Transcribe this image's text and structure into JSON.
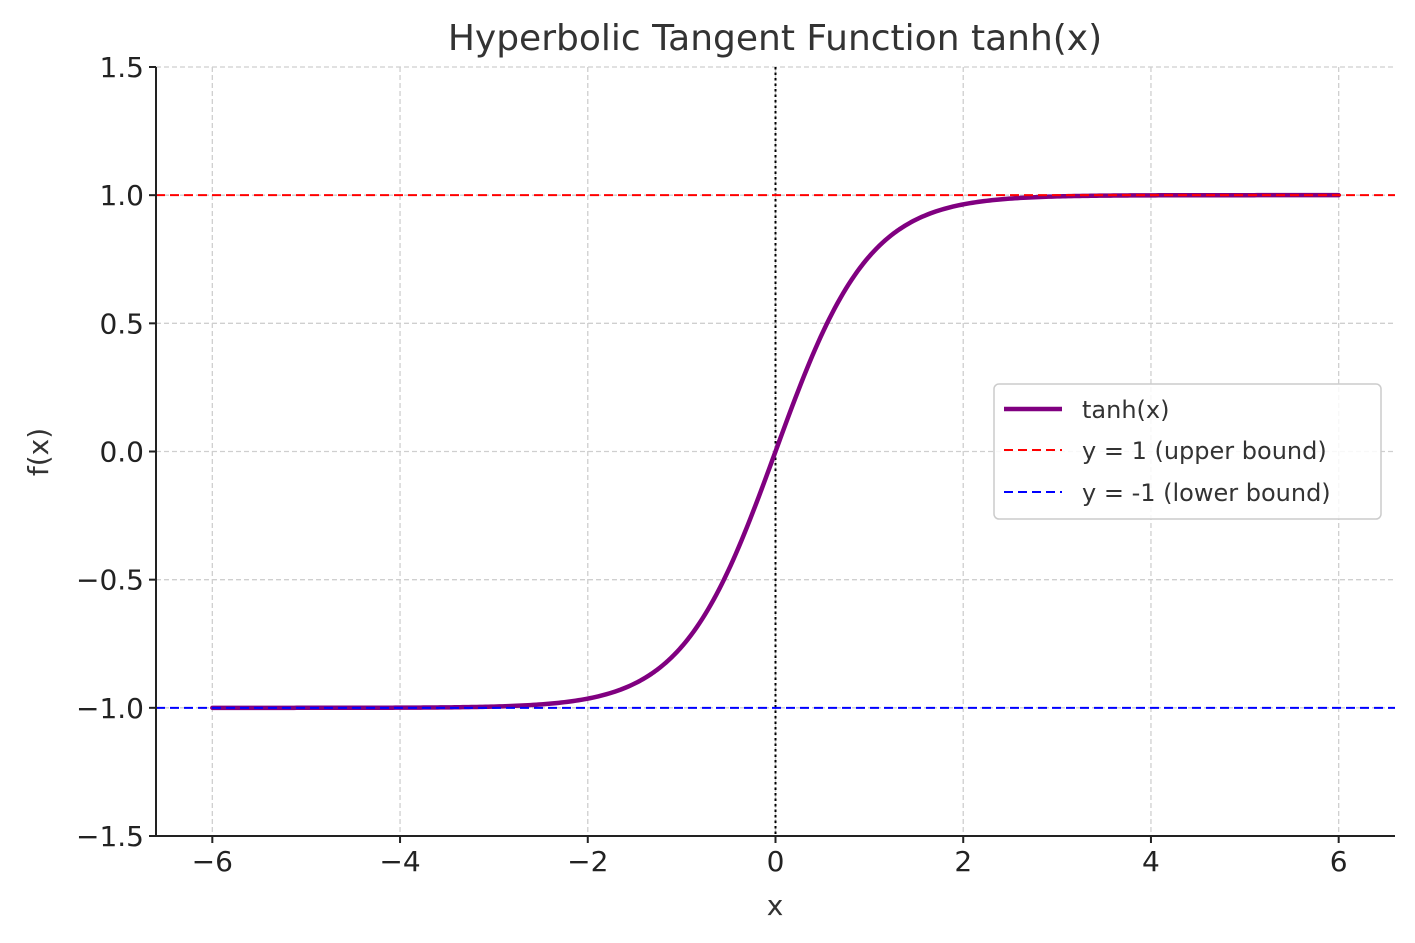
{
  "chart_data": {
    "type": "line",
    "title": "Hyperbolic Tangent Function tanh(x)",
    "xlabel": "x",
    "ylabel": "f(x)",
    "xlim": [
      -6.6,
      6.6
    ],
    "ylim": [
      -1.5,
      1.5
    ],
    "x_ticks": [
      -6,
      -4,
      -2,
      0,
      2,
      4,
      6
    ],
    "x_tick_labels": [
      "−6",
      "−4",
      "−2",
      "0",
      "2",
      "4",
      "6"
    ],
    "y_ticks": [
      -1.5,
      -1.0,
      -0.5,
      0.0,
      0.5,
      1.0,
      1.5
    ],
    "y_tick_labels": [
      "−1.5",
      "−1.0",
      "−0.5",
      "0.0",
      "0.5",
      "1.0",
      "1.5"
    ],
    "grid": true,
    "legend_position": "right",
    "series": [
      {
        "name": "tanh(x)",
        "function": "tanh",
        "x_range": [
          -6,
          6
        ],
        "color": "#800080",
        "style": "solid",
        "x": [
          -6,
          -5,
          -4,
          -3,
          -2.5,
          -2,
          -1.5,
          -1,
          -0.5,
          0,
          0.5,
          1,
          1.5,
          2,
          2.5,
          3,
          4,
          5,
          6
        ],
        "y": [
          -1.0,
          -0.9999,
          -0.9993,
          -0.9951,
          -0.9866,
          -0.964,
          -0.9051,
          -0.7616,
          -0.4621,
          0.0,
          0.4621,
          0.7616,
          0.9051,
          0.964,
          0.9866,
          0.9951,
          0.9993,
          0.9999,
          1.0
        ]
      },
      {
        "name": "y = 1 (upper bound)",
        "type": "hline",
        "y": 1,
        "color": "#ff0000",
        "style": "dashed"
      },
      {
        "name": "y = -1 (lower bound)",
        "type": "hline",
        "y": -1,
        "color": "#0000ff",
        "style": "dashed"
      }
    ],
    "reference_lines": [
      {
        "type": "vline",
        "x": 0,
        "color": "#000000",
        "style": "dotted"
      }
    ]
  }
}
